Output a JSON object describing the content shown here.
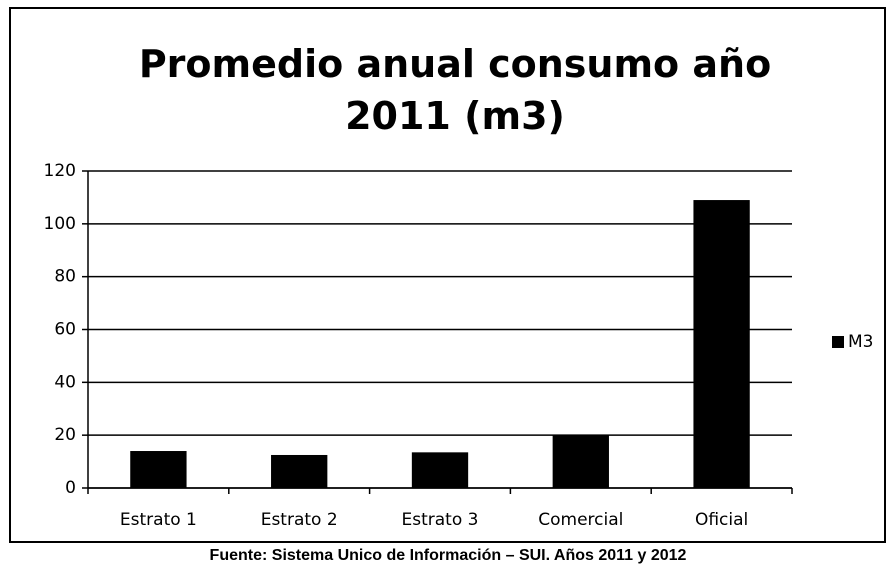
{
  "chart_data": {
    "type": "bar",
    "title": "Promedio anual consumo año 2011 (m3)",
    "categories": [
      "Estrato 1",
      "Estrato 2",
      "Estrato 3",
      "Comercial",
      "Oficial"
    ],
    "series": [
      {
        "name": "M3",
        "color": "#000000",
        "values": [
          14,
          12.5,
          13.5,
          20,
          109
        ]
      }
    ],
    "ylim": [
      0,
      120
    ],
    "yticks": [
      0,
      20,
      40,
      60,
      80,
      100,
      120
    ],
    "grid": true,
    "legend": "right"
  },
  "source": "Fuente: Sistema Unico de Información – SUI. Años 2011 y 2012"
}
